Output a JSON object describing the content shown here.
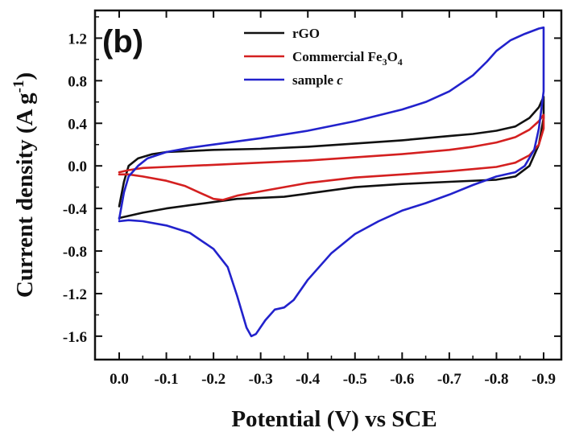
{
  "chart_data": {
    "type": "line",
    "panel_label": "(b)",
    "xlabel": "Potential (V) vs SCE",
    "ylabel": "Current density (A g-1)",
    "ylabel_parts": {
      "main": "Current density (A g",
      "sup": "-1",
      "close": ")"
    },
    "xlim": [
      0.0,
      -0.9
    ],
    "ylim": [
      -1.82,
      1.46
    ],
    "x_ticks": [
      0.0,
      -0.1,
      -0.2,
      -0.3,
      -0.4,
      -0.5,
      -0.6,
      -0.7,
      -0.8,
      -0.9
    ],
    "x_tick_labels": [
      "0.0",
      "-0.1",
      "-0.2",
      "-0.3",
      "-0.4",
      "-0.5",
      "-0.6",
      "-0.7",
      "-0.8",
      "-0.9"
    ],
    "y_ticks": [
      -1.6,
      -1.2,
      -0.8,
      -0.4,
      0.0,
      0.4,
      0.8,
      1.2
    ],
    "y_tick_labels": [
      "-1.6",
      "-1.2",
      "-0.8",
      "-0.4",
      "0.0",
      "0.4",
      "0.8",
      "1.2"
    ],
    "grid": false,
    "legend_position": "top-center",
    "series": [
      {
        "name": "rGO",
        "legend_parts": [
          {
            "text": "rGO"
          }
        ],
        "color": "#111111",
        "points": [
          [
            0.0,
            -0.38
          ],
          [
            -0.01,
            -0.15
          ],
          [
            -0.02,
            0.0
          ],
          [
            -0.04,
            0.07
          ],
          [
            -0.07,
            0.11
          ],
          [
            -0.1,
            0.13
          ],
          [
            -0.15,
            0.14
          ],
          [
            -0.2,
            0.15
          ],
          [
            -0.3,
            0.16
          ],
          [
            -0.4,
            0.18
          ],
          [
            -0.5,
            0.21
          ],
          [
            -0.6,
            0.24
          ],
          [
            -0.7,
            0.28
          ],
          [
            -0.75,
            0.3
          ],
          [
            -0.8,
            0.33
          ],
          [
            -0.84,
            0.37
          ],
          [
            -0.87,
            0.45
          ],
          [
            -0.89,
            0.55
          ],
          [
            -0.9,
            0.65
          ],
          [
            -0.9,
            0.45
          ],
          [
            -0.89,
            0.2
          ],
          [
            -0.87,
            0.0
          ],
          [
            -0.84,
            -0.1
          ],
          [
            -0.8,
            -0.13
          ],
          [
            -0.7,
            -0.15
          ],
          [
            -0.6,
            -0.17
          ],
          [
            -0.5,
            -0.2
          ],
          [
            -0.45,
            -0.23
          ],
          [
            -0.4,
            -0.26
          ],
          [
            -0.35,
            -0.29
          ],
          [
            -0.3,
            -0.3
          ],
          [
            -0.25,
            -0.31
          ],
          [
            -0.2,
            -0.34
          ],
          [
            -0.15,
            -0.37
          ],
          [
            -0.1,
            -0.4
          ],
          [
            -0.05,
            -0.44
          ],
          [
            -0.02,
            -0.47
          ],
          [
            0.0,
            -0.49
          ]
        ]
      },
      {
        "name": "Commercial Fe3O4",
        "legend_parts": [
          {
            "text": "Commercial Fe"
          },
          {
            "text": "3",
            "sub": true
          },
          {
            "text": "O"
          },
          {
            "text": "4",
            "sub": true
          }
        ],
        "color": "#d42020",
        "points": [
          [
            0.0,
            -0.06
          ],
          [
            -0.02,
            -0.04
          ],
          [
            -0.05,
            -0.02
          ],
          [
            -0.1,
            -0.01
          ],
          [
            -0.2,
            0.01
          ],
          [
            -0.3,
            0.03
          ],
          [
            -0.4,
            0.05
          ],
          [
            -0.5,
            0.08
          ],
          [
            -0.6,
            0.11
          ],
          [
            -0.7,
            0.15
          ],
          [
            -0.75,
            0.18
          ],
          [
            -0.8,
            0.22
          ],
          [
            -0.84,
            0.27
          ],
          [
            -0.87,
            0.34
          ],
          [
            -0.89,
            0.42
          ],
          [
            -0.9,
            0.48
          ],
          [
            -0.9,
            0.35
          ],
          [
            -0.89,
            0.2
          ],
          [
            -0.87,
            0.1
          ],
          [
            -0.84,
            0.03
          ],
          [
            -0.8,
            -0.01
          ],
          [
            -0.75,
            -0.03
          ],
          [
            -0.7,
            -0.05
          ],
          [
            -0.6,
            -0.08
          ],
          [
            -0.5,
            -0.11
          ],
          [
            -0.4,
            -0.16
          ],
          [
            -0.35,
            -0.2
          ],
          [
            -0.3,
            -0.24
          ],
          [
            -0.25,
            -0.28
          ],
          [
            -0.22,
            -0.32
          ],
          [
            -0.2,
            -0.31
          ],
          [
            -0.17,
            -0.25
          ],
          [
            -0.14,
            -0.19
          ],
          [
            -0.1,
            -0.14
          ],
          [
            -0.05,
            -0.1
          ],
          [
            -0.02,
            -0.08
          ],
          [
            0.0,
            -0.08
          ]
        ]
      },
      {
        "name": "sample c",
        "legend_parts": [
          {
            "text": "sample "
          },
          {
            "text": "c",
            "italic": true
          }
        ],
        "color": "#2222cc",
        "points": [
          [
            0.0,
            -0.5
          ],
          [
            -0.01,
            -0.25
          ],
          [
            -0.02,
            -0.1
          ],
          [
            -0.04,
            0.0
          ],
          [
            -0.06,
            0.07
          ],
          [
            -0.1,
            0.13
          ],
          [
            -0.15,
            0.17
          ],
          [
            -0.2,
            0.2
          ],
          [
            -0.3,
            0.26
          ],
          [
            -0.4,
            0.33
          ],
          [
            -0.5,
            0.42
          ],
          [
            -0.6,
            0.53
          ],
          [
            -0.65,
            0.6
          ],
          [
            -0.7,
            0.7
          ],
          [
            -0.75,
            0.85
          ],
          [
            -0.78,
            0.98
          ],
          [
            -0.8,
            1.08
          ],
          [
            -0.83,
            1.18
          ],
          [
            -0.86,
            1.24
          ],
          [
            -0.89,
            1.29
          ],
          [
            -0.9,
            1.3
          ],
          [
            -0.9,
            0.7
          ],
          [
            -0.89,
            0.35
          ],
          [
            -0.88,
            0.15
          ],
          [
            -0.86,
            0.0
          ],
          [
            -0.84,
            -0.06
          ],
          [
            -0.8,
            -0.1
          ],
          [
            -0.75,
            -0.18
          ],
          [
            -0.7,
            -0.27
          ],
          [
            -0.65,
            -0.35
          ],
          [
            -0.6,
            -0.42
          ],
          [
            -0.55,
            -0.52
          ],
          [
            -0.5,
            -0.64
          ],
          [
            -0.45,
            -0.82
          ],
          [
            -0.4,
            -1.07
          ],
          [
            -0.37,
            -1.26
          ],
          [
            -0.35,
            -1.33
          ],
          [
            -0.33,
            -1.35
          ],
          [
            -0.31,
            -1.45
          ],
          [
            -0.29,
            -1.58
          ],
          [
            -0.28,
            -1.6
          ],
          [
            -0.27,
            -1.52
          ],
          [
            -0.25,
            -1.22
          ],
          [
            -0.23,
            -0.95
          ],
          [
            -0.2,
            -0.78
          ],
          [
            -0.15,
            -0.63
          ],
          [
            -0.1,
            -0.56
          ],
          [
            -0.05,
            -0.52
          ],
          [
            -0.02,
            -0.51
          ],
          [
            0.0,
            -0.52
          ]
        ]
      }
    ]
  }
}
